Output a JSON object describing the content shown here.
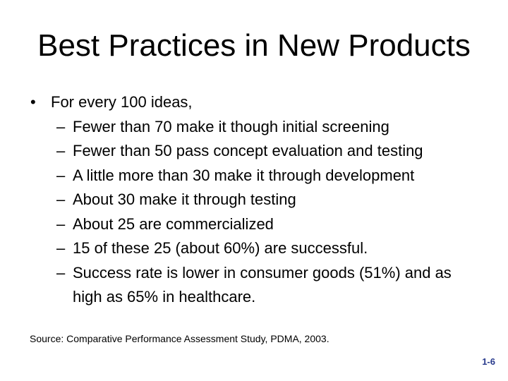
{
  "slide": {
    "title": "Best Practices in New Products",
    "bullets": {
      "lead": "For every 100 ideas,",
      "sub_items": [
        "Fewer than 70 make it though initial screening",
        "Fewer than 50 pass concept evaluation and testing",
        "A little more than 30 make it through development",
        "About 30 make it through testing",
        "About 25 are commercialized",
        "15 of these 25 (about 60%) are successful.",
        "Success rate is lower in consumer goods (51%) and as high as 65% in healthcare."
      ]
    },
    "source_line": "Source: Comparative Performance Assessment Study, PDMA, 2003.",
    "page_number": "1-6"
  },
  "glyphs": {
    "bullet": "•",
    "dash": "–"
  },
  "colors": {
    "background": "#FFFFFF",
    "text": "#000000",
    "page_number": "#283A8C"
  }
}
